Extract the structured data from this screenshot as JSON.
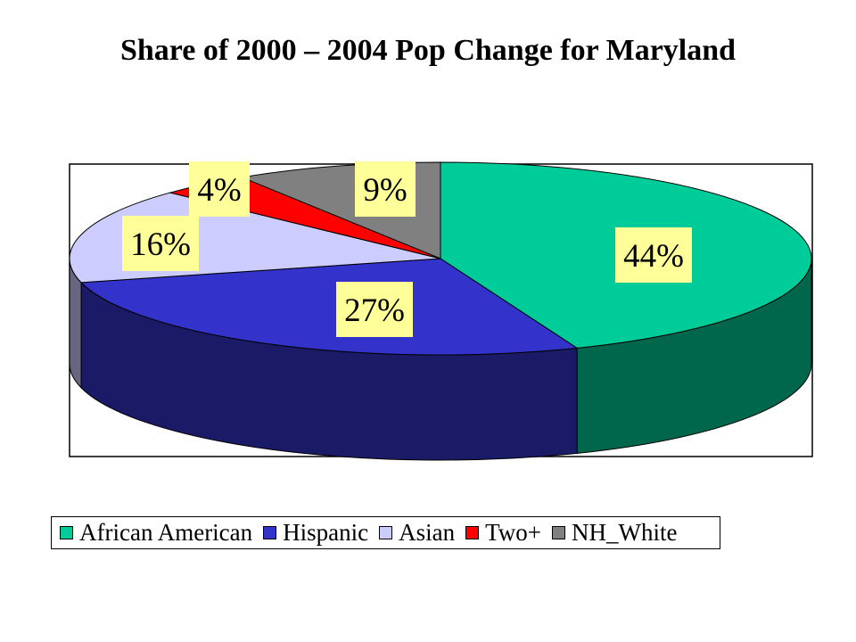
{
  "chart_data": {
    "type": "pie",
    "title": "Share of 2000 – 2004 Pop Change for Maryland",
    "three_d": true,
    "grid": false,
    "legend_position": "bottom",
    "slices": [
      {
        "name": "African American",
        "value": 44,
        "label": "44%",
        "color": "#00CC99",
        "side_color": "#00664C"
      },
      {
        "name": "Hispanic",
        "value": 27,
        "label": "27%",
        "color": "#3333CC",
        "side_color": "#1A1A66"
      },
      {
        "name": "Asian",
        "value": 16,
        "label": "16%",
        "color": "#CCCCFF",
        "side_color": "#666680"
      },
      {
        "name": "Two+",
        "value": 4,
        "label": "4%",
        "color": "#FF0000",
        "side_color": "#800000"
      },
      {
        "name": "NH_White",
        "value": 9,
        "label": "9%",
        "color": "#808080",
        "side_color": "#404040"
      }
    ],
    "label_background": "#FFFF99"
  }
}
